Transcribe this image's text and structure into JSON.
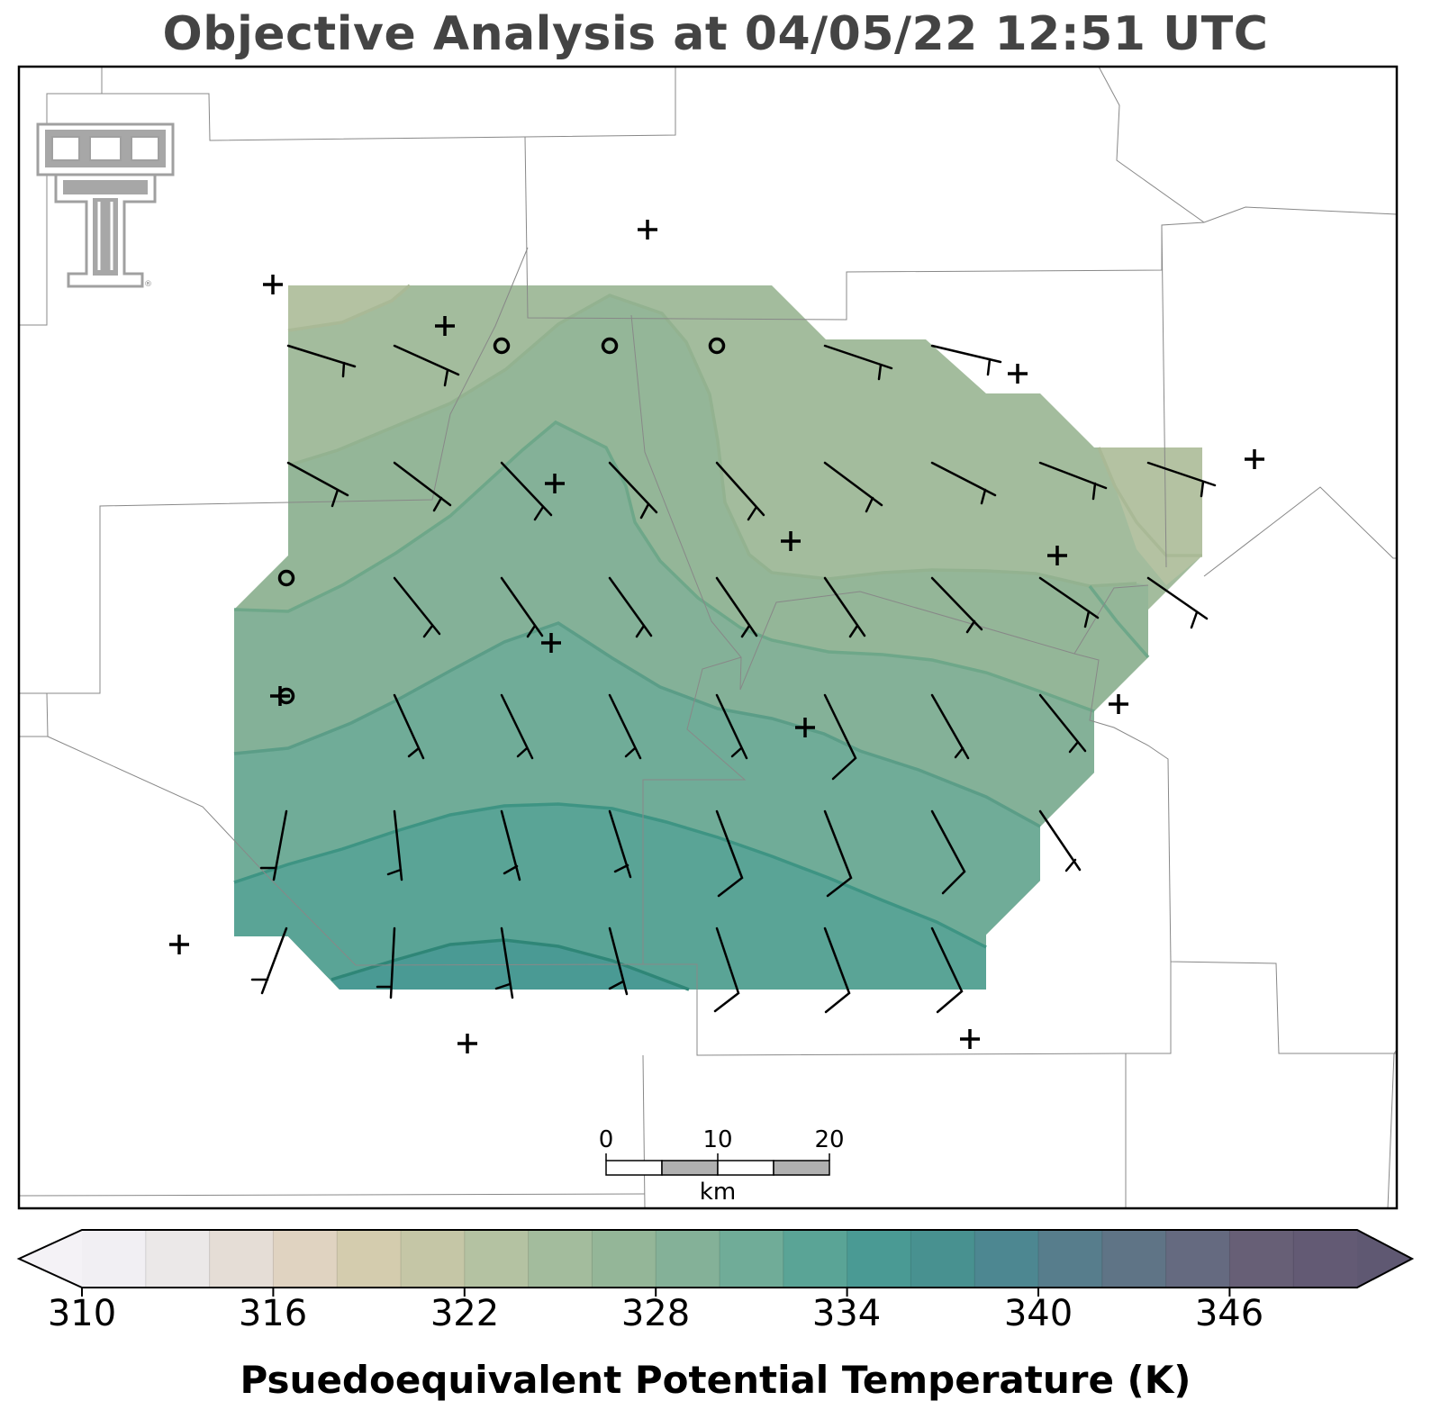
{
  "title": "Objective Analysis at 04/05/22 12:51 UTC",
  "colorbar": {
    "label": "Psuedoequivalent Potential Temperature (K)",
    "ticks": [
      "310",
      "316",
      "322",
      "328",
      "334",
      "340",
      "346"
    ],
    "range": [
      310,
      350
    ],
    "step": 2,
    "colors": [
      "#f1eff3",
      "#ebe8e8",
      "#e5ddd6",
      "#e0d3c1",
      "#d4ccae",
      "#c5c6a6",
      "#b4c2a2",
      "#a3bc9d",
      "#94b698",
      "#84b198",
      "#70ac98",
      "#5aa496",
      "#4a9a94",
      "#489190",
      "#4d8791",
      "#577d8c",
      "#5f7486",
      "#656a80",
      "#675f76",
      "#635a74"
    ]
  },
  "scale_bar": {
    "labels": [
      "0",
      "10",
      "20"
    ],
    "unit": "km"
  },
  "logo": {
    "text": "TT",
    "registered": "®"
  },
  "legend_note": "",
  "isotherm_levels": [
    322,
    324,
    326,
    328,
    330,
    332,
    334
  ]
}
